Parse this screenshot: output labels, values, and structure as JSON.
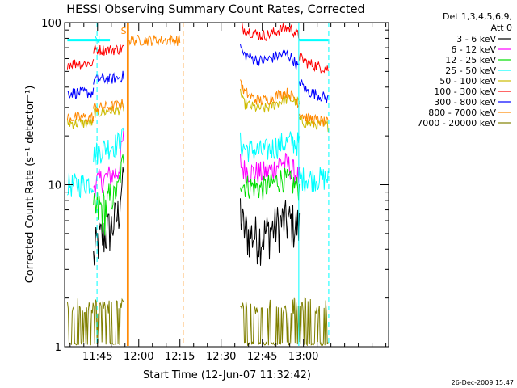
{
  "chart_data": {
    "type": "line",
    "title": "HESSI Observing Summary Count Rates, Corrected",
    "xlabel": "Start Time (12-Jun-07 11:32:42)",
    "ylabel": "Corrected Count Rate (s⁻¹ detector⁻¹)",
    "y_scale": "log",
    "ylim": [
      1,
      100
    ],
    "xlim_minutes_of_day": [
      693,
      811
    ],
    "x_ticks": [
      {
        "t": 705,
        "label": "11:45"
      },
      {
        "t": 720,
        "label": "12:00"
      },
      {
        "t": 735,
        "label": "12:15"
      },
      {
        "t": 750,
        "label": "12:30"
      },
      {
        "t": 765,
        "label": "12:45"
      },
      {
        "t": 780,
        "label": "13:00"
      }
    ],
    "y_ticks": [
      {
        "v": 1,
        "label": "1"
      },
      {
        "v": 10,
        "label": "10"
      },
      {
        "v": 100,
        "label": "100"
      }
    ],
    "legend": {
      "position": "outside-right",
      "header": [
        "Det 1,3,4,5,6,9,",
        "Att 0"
      ]
    },
    "series": [
      {
        "name": "3 - 6 keV",
        "color": "#000000",
        "segments": [
          {
            "t": [
              703.5,
              705,
              707,
              710,
              712.5,
              714.5
            ],
            "v": [
              3.5,
              4.5,
              4.8,
              5.5,
              6.5,
              12
            ]
          },
          {
            "t": [
              757,
              758,
              760,
              764,
              767,
              770,
              773,
              776,
              778.5
            ],
            "v": [
              7,
              5.5,
              5.0,
              4.8,
              5.1,
              5.6,
              6.0,
              5.8,
              5.5
            ]
          }
        ]
      },
      {
        "name": "6 - 12 keV",
        "color": "#ff00ff",
        "segments": [
          {
            "t": [
              703.5,
              705,
              708,
              710,
              712.5,
              714.5
            ],
            "v": [
              10,
              10.5,
              11,
              11.5,
              12,
              20
            ]
          },
          {
            "t": [
              757,
              758,
              761,
              765,
              769,
              772,
              775,
              778.5
            ],
            "v": [
              14,
              12.5,
              12,
              11.8,
              12.5,
              14,
              13,
              11
            ]
          }
        ]
      },
      {
        "name": "12 - 25 keV",
        "color": "#00dd00",
        "segments": [
          {
            "t": [
              703.5,
              705,
              708,
              710,
              712.5,
              714.5
            ],
            "v": [
              6.5,
              7,
              7.3,
              8,
              9.5,
              15
            ]
          },
          {
            "t": [
              757,
              758,
              761,
              765,
              769,
              772,
              775,
              778.5
            ],
            "v": [
              11,
              10,
              9.8,
              9.5,
              10.2,
              11,
              10.5,
              9.5
            ]
          }
        ]
      },
      {
        "name": "25 - 50 keV",
        "color": "#00ffff",
        "segments": [
          {
            "t": [
              694,
              698,
              701,
              703.5
            ],
            "v": [
              10,
              10,
              10.3,
              10.5
            ]
          },
          {
            "t": [
              703.5,
              705,
              708,
              710,
              712.5,
              714.5
            ],
            "v": [
              15,
              16,
              17,
              17.5,
              18,
              22
            ]
          },
          {
            "t": [
              757,
              758,
              761,
              765,
              769,
              772,
              775,
              778.5
            ],
            "v": [
              18,
              17,
              16.5,
              16,
              17,
              18,
              18.5,
              18
            ]
          },
          {
            "t": [
              778.5,
              781,
              785,
              789
            ],
            "v": [
              11,
              11,
              11,
              11
            ]
          }
        ]
      },
      {
        "name": "50 - 100 keV",
        "color": "#ccbb00",
        "segments": [
          {
            "t": [
              694,
              698,
              701,
              703.5
            ],
            "v": [
              24,
              24,
              24,
              24
            ]
          },
          {
            "t": [
              703.5,
              706,
              709,
              712,
              714.5
            ],
            "v": [
              28,
              28,
              28.5,
              29,
              30
            ]
          },
          {
            "t": [
              757,
              758,
              762,
              766,
              769,
              772,
              775,
              778.5
            ],
            "v": [
              38,
              32,
              30,
              29.5,
              31,
              33,
              34,
              32
            ]
          },
          {
            "t": [
              778.5,
              781,
              785,
              789
            ],
            "v": [
              25,
              24,
              23.5,
              23
            ]
          }
        ]
      },
      {
        "name": "100 - 300 keV",
        "color": "#ff0000",
        "segments": [
          {
            "t": [
              694,
              698,
              701,
              703.5
            ],
            "v": [
              56,
              56,
              56,
              56
            ]
          },
          {
            "t": [
              703.5,
              706,
              710,
              713,
              714.5
            ],
            "v": [
              68,
              68,
              68,
              69,
              70
            ]
          },
          {
            "t": [
              757,
              758,
              762,
              765,
              768,
              771,
              774,
              776,
              778.5
            ],
            "v": [
              100,
              92,
              86,
              83,
              85,
              90,
              93,
              90,
              82
            ]
          },
          {
            "t": [
              778.5,
              781,
              785,
              789
            ],
            "v": [
              62,
              57,
              54,
              52
            ]
          }
        ]
      },
      {
        "name": "300 - 800 keV",
        "color": "#0000ff",
        "segments": [
          {
            "t": [
              694,
              698,
              701,
              703.5
            ],
            "v": [
              37,
              37,
              37,
              37
            ]
          },
          {
            "t": [
              703.5,
              706,
              710,
              713,
              714.5
            ],
            "v": [
              44,
              45,
              45,
              46,
              47
            ]
          },
          {
            "t": [
              757,
              758,
              762,
              765,
              768,
              771,
              774,
              776,
              778.5
            ],
            "v": [
              72,
              64,
              60,
              58,
              60,
              63,
              64,
              60,
              52
            ]
          },
          {
            "t": [
              778.5,
              781,
              785,
              789
            ],
            "v": [
              44,
              38,
              36,
              34
            ]
          }
        ]
      },
      {
        "name": "800 - 7000 keV",
        "color": "#ff8800",
        "segments": [
          {
            "t": [
              694,
              698,
              701,
              703.5
            ],
            "v": [
              26,
              26,
              26,
              26
            ]
          },
          {
            "t": [
              703.5,
              706,
              710,
              713,
              714.5
            ],
            "v": [
              30,
              30,
              30.5,
              31,
              32
            ]
          },
          {
            "t": [
              716.5,
              723,
              730,
              735
            ],
            "v": [
              78,
              78,
              78,
              78
            ]
          },
          {
            "t": [
              757,
              758,
              762,
              765,
              768,
              771,
              774,
              776,
              778.5
            ],
            "v": [
              45,
              38,
              34,
              33,
              34,
              36,
              37,
              35,
              32
            ]
          },
          {
            "t": [
              778.5,
              781,
              785,
              789
            ],
            "v": [
              28,
              26,
              25,
              24
            ]
          }
        ]
      },
      {
        "name": "7000 - 20000 keV",
        "color": "#808000",
        "segments": [
          {
            "t": [
              694,
              703,
              714.5
            ],
            "v": [
              1.6,
              1.6,
              1.6
            ]
          },
          {
            "t": [
              757,
              768,
              789
            ],
            "v": [
              1.6,
              1.6,
              1.6
            ]
          }
        ]
      }
    ],
    "annotations": [
      {
        "text": "N",
        "color": "#00ffff",
        "t": 704.8,
        "v": 75
      },
      {
        "text": "S",
        "color": "#ff8800",
        "t": 714.5,
        "v": 85
      }
    ],
    "cyan_att_bar": [
      {
        "t": [
          694,
          709.5
        ],
        "v": 78
      },
      {
        "t": [
          778.5,
          789
        ],
        "v": 78
      }
    ],
    "vlines": [
      {
        "t": 704.8,
        "color": "#00ffff",
        "style": "dashed"
      },
      {
        "t": 715.8,
        "color": "#ff8800",
        "style": "solid"
      },
      {
        "t": 716.3,
        "color": "#ff8800",
        "style": "solid"
      },
      {
        "t": 736.2,
        "color": "#ff8800",
        "style": "dashed"
      },
      {
        "t": 778.3,
        "color": "#00ffff",
        "style": "solid"
      },
      {
        "t": 789.2,
        "color": "#00ffff",
        "style": "dashed"
      }
    ],
    "footer_date": "26-Dec-2009 15:47"
  }
}
